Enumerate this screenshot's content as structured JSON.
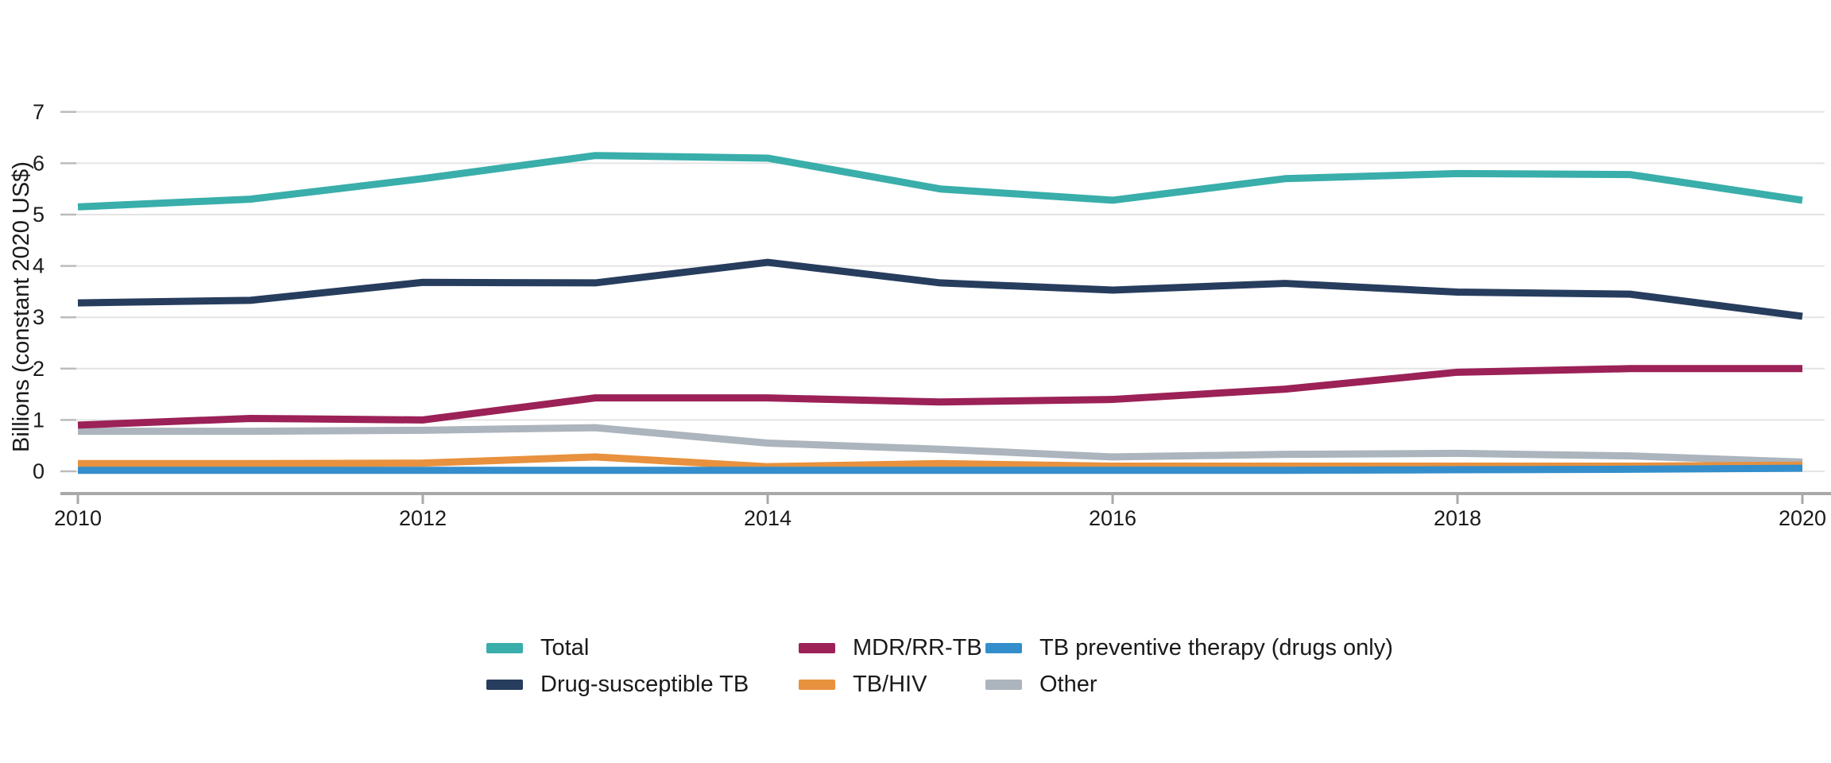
{
  "figure": {
    "background": "#ffffff",
    "text_color": "#1a1a1a",
    "grid_color": "#e4e4e4",
    "tick_stub_color": "#bcbcbc",
    "axis_color": "#a8a8a8"
  },
  "chart_data": {
    "type": "line",
    "title": "",
    "xlabel": "",
    "ylabel": "Billions (constant 2020 US$)",
    "x": [
      2010,
      2011,
      2012,
      2013,
      2014,
      2015,
      2016,
      2017,
      2018,
      2019,
      2020
    ],
    "xticks": [
      2010,
      2012,
      2014,
      2016,
      2018,
      2020
    ],
    "xtick_labels": [
      "2010",
      "2012",
      "2014",
      "2016",
      "2018",
      "2020"
    ],
    "ylim": [
      0,
      7
    ],
    "yticks": [
      0,
      1,
      2,
      3,
      4,
      5,
      6,
      7
    ],
    "ytick_labels": [
      "0",
      "1",
      "2",
      "3",
      "4",
      "5",
      "6",
      "7"
    ],
    "grid": "horizontal",
    "legend_position": "bottom",
    "series": [
      {
        "name": "Other",
        "color": "#acb4bd",
        "values": [
          0.78,
          0.78,
          0.8,
          0.85,
          0.55,
          0.43,
          0.28,
          0.33,
          0.35,
          0.3,
          0.18
        ]
      },
      {
        "name": "TB/HIV",
        "color": "#e8913e",
        "values": [
          0.15,
          0.15,
          0.16,
          0.28,
          0.09,
          0.15,
          0.1,
          0.1,
          0.1,
          0.1,
          0.12
        ]
      },
      {
        "name": "TB preventive therapy (drugs only)",
        "color": "#348ecb",
        "values": [
          0.02,
          0.02,
          0.02,
          0.02,
          0.02,
          0.02,
          0.02,
          0.02,
          0.03,
          0.04,
          0.06
        ]
      },
      {
        "name": "MDR/RR-TB",
        "color": "#9b2157",
        "values": [
          0.9,
          1.03,
          1.0,
          1.43,
          1.43,
          1.35,
          1.4,
          1.6,
          1.93,
          2.0,
          2.0
        ]
      },
      {
        "name": "Drug-susceptible TB",
        "color": "#273d5d",
        "values": [
          3.28,
          3.33,
          3.68,
          3.67,
          4.07,
          3.67,
          3.53,
          3.66,
          3.49,
          3.45,
          3.02
        ]
      },
      {
        "name": "Total",
        "color": "#39aeaa",
        "values": [
          5.15,
          5.3,
          5.7,
          6.15,
          6.1,
          5.5,
          5.28,
          5.7,
          5.8,
          5.78,
          5.28
        ]
      }
    ],
    "legend_rows": [
      [
        "Total",
        "MDR/RR-TB",
        "TB preventive therapy (drugs only)"
      ],
      [
        "Drug-susceptible TB",
        "TB/HIV",
        "Other"
      ]
    ]
  }
}
